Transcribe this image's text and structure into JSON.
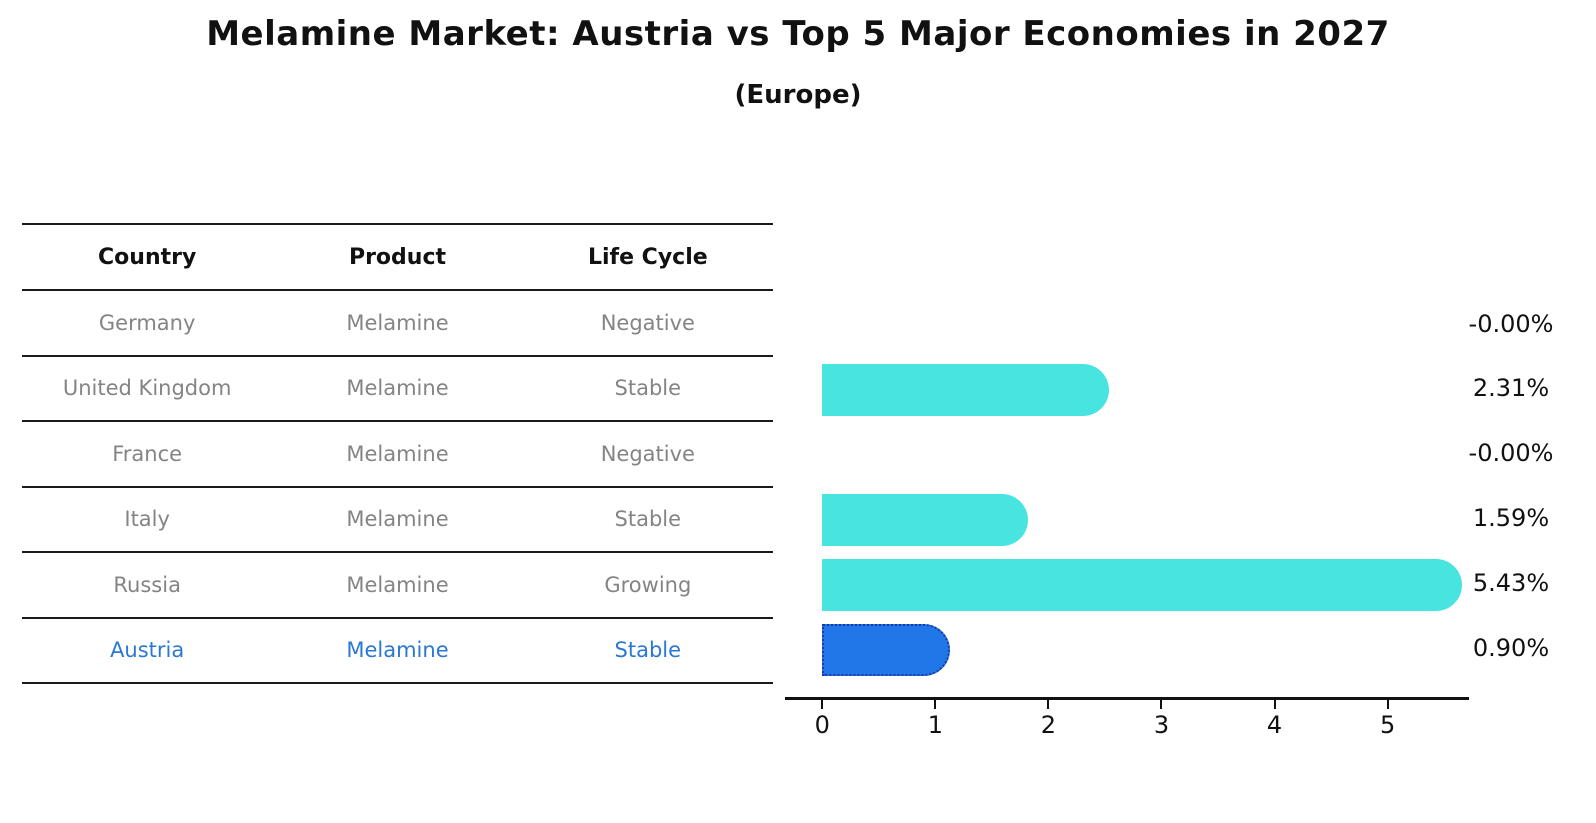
{
  "title": "Melamine Market: Austria vs Top 5 Major Economies in 2027",
  "subtitle": "(Europe)",
  "table": {
    "headers": [
      "Country",
      "Product",
      "Life Cycle"
    ],
    "rows": [
      {
        "country": "Germany",
        "product": "Melamine",
        "life_cycle": "Negative",
        "highlight": false
      },
      {
        "country": "United Kingdom",
        "product": "Melamine",
        "life_cycle": "Stable",
        "highlight": false
      },
      {
        "country": "France",
        "product": "Melamine",
        "life_cycle": "Negative",
        "highlight": false
      },
      {
        "country": "Italy",
        "product": "Melamine",
        "life_cycle": "Stable",
        "highlight": false
      },
      {
        "country": "Russia",
        "product": "Melamine",
        "life_cycle": "Growing",
        "highlight": false
      },
      {
        "country": "Austria",
        "product": "Melamine",
        "life_cycle": "Stable",
        "highlight": true
      }
    ]
  },
  "chart_data": {
    "type": "bar",
    "orientation": "horizontal",
    "title": "Melamine Market: Austria vs Top 5 Major Economies in 2027",
    "subtitle": "(Europe)",
    "categories": [
      "Germany",
      "United Kingdom",
      "France",
      "Italy",
      "Russia",
      "Austria"
    ],
    "values": [
      -0.0,
      2.31,
      -0.0,
      1.59,
      5.43,
      0.9
    ],
    "value_labels": [
      "-0.00%",
      "2.31%",
      "-0.00%",
      "1.59%",
      "5.43%",
      "0.90%"
    ],
    "x_ticks": [
      0,
      1,
      2,
      3,
      4,
      5
    ],
    "xlim": [
      -0.33,
      5.72
    ],
    "grid": false,
    "legend": "none",
    "bar_color": "#48e5e0",
    "highlight_index": 5,
    "highlight_bar_color": "#2277e8",
    "highlight_bar_edge_color": "#1c39a8",
    "highlight_text_color": "#2b78d4"
  }
}
